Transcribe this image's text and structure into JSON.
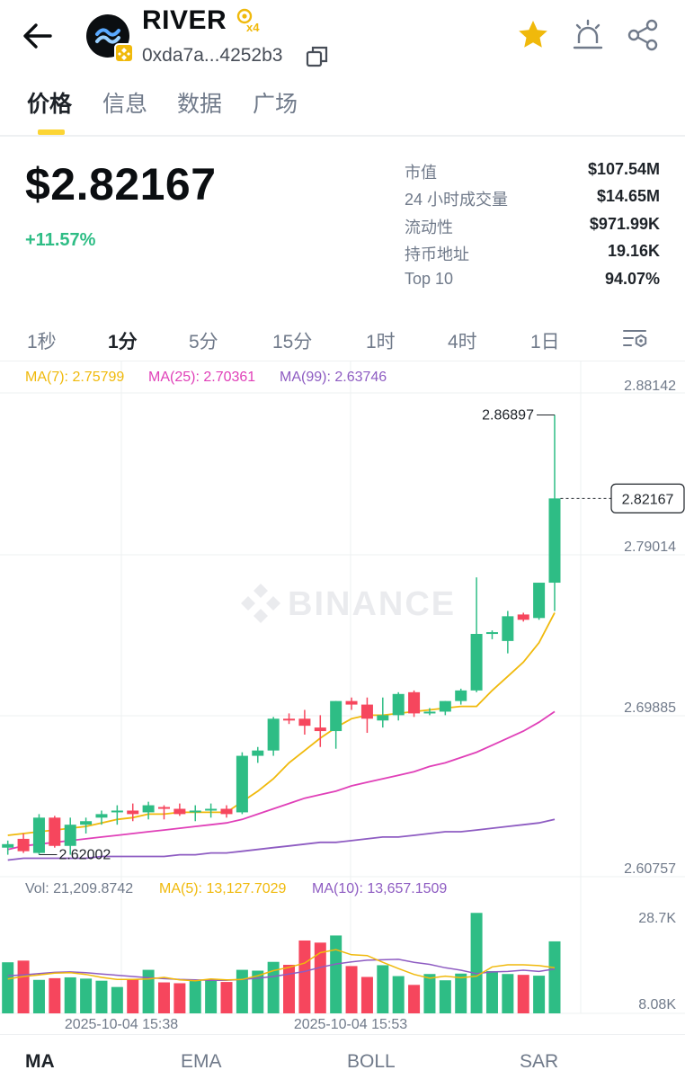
{
  "header": {
    "token_name": "RIVER",
    "address": "0xda7a...4252b3",
    "boost_label": "x4"
  },
  "tabs": [
    {
      "label": "价格",
      "active": true
    },
    {
      "label": "信息",
      "active": false
    },
    {
      "label": "数据",
      "active": false
    },
    {
      "label": "广场",
      "active": false
    }
  ],
  "price": {
    "value": "$2.82167",
    "change": "+11.57%"
  },
  "stats": [
    {
      "label": "市值",
      "value": "$107.54M"
    },
    {
      "label": "24 小时成交量",
      "value": "$14.65M"
    },
    {
      "label": "流动性",
      "value": "$971.99K"
    },
    {
      "label": "持币地址",
      "value": "19.16K"
    },
    {
      "label": "Top 10",
      "value": "94.07%"
    }
  ],
  "intervals": [
    {
      "label": "1秒",
      "active": false
    },
    {
      "label": "1分",
      "active": true
    },
    {
      "label": "5分",
      "active": false
    },
    {
      "label": "15分",
      "active": false
    },
    {
      "label": "1时",
      "active": false
    },
    {
      "label": "4时",
      "active": false
    },
    {
      "label": "1日",
      "active": false
    }
  ],
  "indicator_tabs": [
    {
      "label": "MA",
      "active": true
    },
    {
      "label": "EMA",
      "active": false
    },
    {
      "label": "BOLL",
      "active": false
    },
    {
      "label": "SAR",
      "active": false
    }
  ],
  "colors": {
    "up": "#2ebd85",
    "down": "#f6465d",
    "ma7": "#f0b90b",
    "ma25": "#e040b8",
    "ma99": "#8e5cc2",
    "accent": "#fcd535"
  },
  "chart_data": {
    "type": "candlestick",
    "watermark": "BINANCE",
    "ma_legend": {
      "ma7": "MA(7): 2.75799",
      "ma25": "MA(25): 2.70361",
      "ma99": "MA(99): 2.63746"
    },
    "price_axis_labels": [
      "2.88142",
      "2.79014",
      "2.69885",
      "2.60757"
    ],
    "ylim": [
      2.60757,
      2.88142
    ],
    "current_price_label": "2.82167",
    "current_price": 2.82167,
    "high_label": "2.86897",
    "high_value": 2.86897,
    "low_label": "2.62002",
    "low_value": 2.62002,
    "candles": [
      {
        "o": 2.624,
        "h": 2.628,
        "l": 2.62,
        "c": 2.626
      },
      {
        "o": 2.629,
        "h": 2.632,
        "l": 2.621,
        "c": 2.622
      },
      {
        "o": 2.621,
        "h": 2.643,
        "l": 2.62,
        "c": 2.641
      },
      {
        "o": 2.641,
        "h": 2.642,
        "l": 2.624,
        "c": 2.625
      },
      {
        "o": 2.625,
        "h": 2.641,
        "l": 2.62,
        "c": 2.637
      },
      {
        "o": 2.637,
        "h": 2.641,
        "l": 2.632,
        "c": 2.639
      },
      {
        "o": 2.641,
        "h": 2.645,
        "l": 2.637,
        "c": 2.643
      },
      {
        "o": 2.644,
        "h": 2.648,
        "l": 2.637,
        "c": 2.645
      },
      {
        "o": 2.645,
        "h": 2.649,
        "l": 2.639,
        "c": 2.643
      },
      {
        "o": 2.644,
        "h": 2.65,
        "l": 2.64,
        "c": 2.648
      },
      {
        "o": 2.647,
        "h": 2.648,
        "l": 2.64,
        "c": 2.646
      },
      {
        "o": 2.646,
        "h": 2.649,
        "l": 2.642,
        "c": 2.643
      },
      {
        "o": 2.644,
        "h": 2.648,
        "l": 2.639,
        "c": 2.645
      },
      {
        "o": 2.645,
        "h": 2.649,
        "l": 2.641,
        "c": 2.646
      },
      {
        "o": 2.646,
        "h": 2.648,
        "l": 2.641,
        "c": 2.643
      },
      {
        "o": 2.644,
        "h": 2.678,
        "l": 2.643,
        "c": 2.676
      },
      {
        "o": 2.676,
        "h": 2.681,
        "l": 2.672,
        "c": 2.679
      },
      {
        "o": 2.679,
        "h": 2.698,
        "l": 2.676,
        "c": 2.697
      },
      {
        "o": 2.697,
        "h": 2.7,
        "l": 2.694,
        "c": 2.696
      },
      {
        "o": 2.697,
        "h": 2.702,
        "l": 2.688,
        "c": 2.693
      },
      {
        "o": 2.692,
        "h": 2.699,
        "l": 2.681,
        "c": 2.69
      },
      {
        "o": 2.69,
        "h": 2.707,
        "l": 2.68,
        "c": 2.707
      },
      {
        "o": 2.707,
        "h": 2.709,
        "l": 2.702,
        "c": 2.705
      },
      {
        "o": 2.705,
        "h": 2.709,
        "l": 2.689,
        "c": 2.697
      },
      {
        "o": 2.696,
        "h": 2.709,
        "l": 2.692,
        "c": 2.699
      },
      {
        "o": 2.699,
        "h": 2.712,
        "l": 2.696,
        "c": 2.711
      },
      {
        "o": 2.712,
        "h": 2.713,
        "l": 2.698,
        "c": 2.7
      },
      {
        "o": 2.7,
        "h": 2.703,
        "l": 2.699,
        "c": 2.701
      },
      {
        "o": 2.701,
        "h": 2.707,
        "l": 2.699,
        "c": 2.707
      },
      {
        "o": 2.707,
        "h": 2.714,
        "l": 2.705,
        "c": 2.713
      },
      {
        "o": 2.713,
        "h": 2.777,
        "l": 2.712,
        "c": 2.745
      },
      {
        "o": 2.745,
        "h": 2.747,
        "l": 2.742,
        "c": 2.746
      },
      {
        "o": 2.741,
        "h": 2.758,
        "l": 2.734,
        "c": 2.755
      },
      {
        "o": 2.756,
        "h": 2.757,
        "l": 2.752,
        "c": 2.753
      },
      {
        "o": 2.754,
        "h": 2.774,
        "l": 2.753,
        "c": 2.774
      },
      {
        "o": 2.774,
        "h": 2.869,
        "l": 2.758,
        "c": 2.8217
      }
    ],
    "ma7_values": [
      2.631,
      2.632,
      2.633,
      2.634,
      2.635,
      2.636,
      2.638,
      2.64,
      2.641,
      2.643,
      2.643,
      2.644,
      2.644,
      2.644,
      2.644,
      2.65,
      2.656,
      2.663,
      2.672,
      2.679,
      2.686,
      2.692,
      2.697,
      2.699,
      2.699,
      2.7,
      2.701,
      2.702,
      2.703,
      2.704,
      2.704,
      2.713,
      2.721,
      2.729,
      2.74,
      2.757
    ],
    "ma25_values": [
      2.623,
      2.625,
      2.626,
      2.627,
      2.628,
      2.629,
      2.63,
      2.631,
      2.632,
      2.633,
      2.634,
      2.635,
      2.636,
      2.637,
      2.638,
      2.64,
      2.643,
      2.646,
      2.649,
      2.652,
      2.654,
      2.656,
      2.659,
      2.661,
      2.663,
      2.665,
      2.667,
      2.67,
      2.672,
      2.675,
      2.678,
      2.682,
      2.686,
      2.69,
      2.695,
      2.701
    ],
    "ma99_values": [
      2.617,
      2.618,
      2.618,
      2.618,
      2.618,
      2.618,
      2.619,
      2.619,
      2.619,
      2.619,
      2.619,
      2.62,
      2.62,
      2.621,
      2.621,
      2.622,
      2.623,
      2.624,
      2.625,
      2.626,
      2.627,
      2.627,
      2.628,
      2.629,
      2.63,
      2.63,
      2.631,
      2.632,
      2.633,
      2.633,
      2.634,
      2.635,
      2.636,
      2.637,
      2.638,
      2.64
    ],
    "volume": {
      "legend": {
        "vol": "Vol: 21,209.8742",
        "ma5": "MA(5): 13,127.7029",
        "ma10": "MA(10): 13,657.1509"
      },
      "axis_labels": [
        "28.7K",
        "8.08K"
      ],
      "ylim": [
        4000,
        28700
      ],
      "values": [
        16200,
        16600,
        12000,
        12400,
        12600,
        12300,
        11800,
        10300,
        12100,
        14400,
        11400,
        11200,
        12000,
        12000,
        11500,
        14400,
        14200,
        16300,
        15600,
        21400,
        20900,
        22600,
        15300,
        12700,
        15500,
        12900,
        10800,
        13400,
        11900,
        13500,
        28000,
        14100,
        13400,
        13200,
        13000,
        21200
      ],
      "ma5_values": [
        12200,
        12800,
        13200,
        13600,
        13700,
        13300,
        12600,
        12100,
        12100,
        12200,
        12600,
        12000,
        11800,
        12200,
        12000,
        12100,
        13000,
        14200,
        15000,
        16000,
        18500,
        19200,
        18000,
        17800,
        16200,
        14700,
        13300,
        12400,
        12900,
        12500,
        12900,
        15100,
        15600,
        15600,
        15400,
        14900
      ],
      "ma10_values": [
        13000,
        13200,
        13500,
        13800,
        13900,
        13700,
        13400,
        13100,
        12800,
        12500,
        12300,
        12100,
        12000,
        11900,
        11900,
        12100,
        12400,
        12800,
        13400,
        14000,
        15000,
        15800,
        16300,
        16700,
        16800,
        16900,
        16200,
        15700,
        14900,
        14300,
        13500,
        13900,
        14000,
        14300,
        14000,
        14600
      ]
    },
    "time_labels": [
      "2025-10-04 15:38",
      "2025-10-04 15:53"
    ]
  }
}
